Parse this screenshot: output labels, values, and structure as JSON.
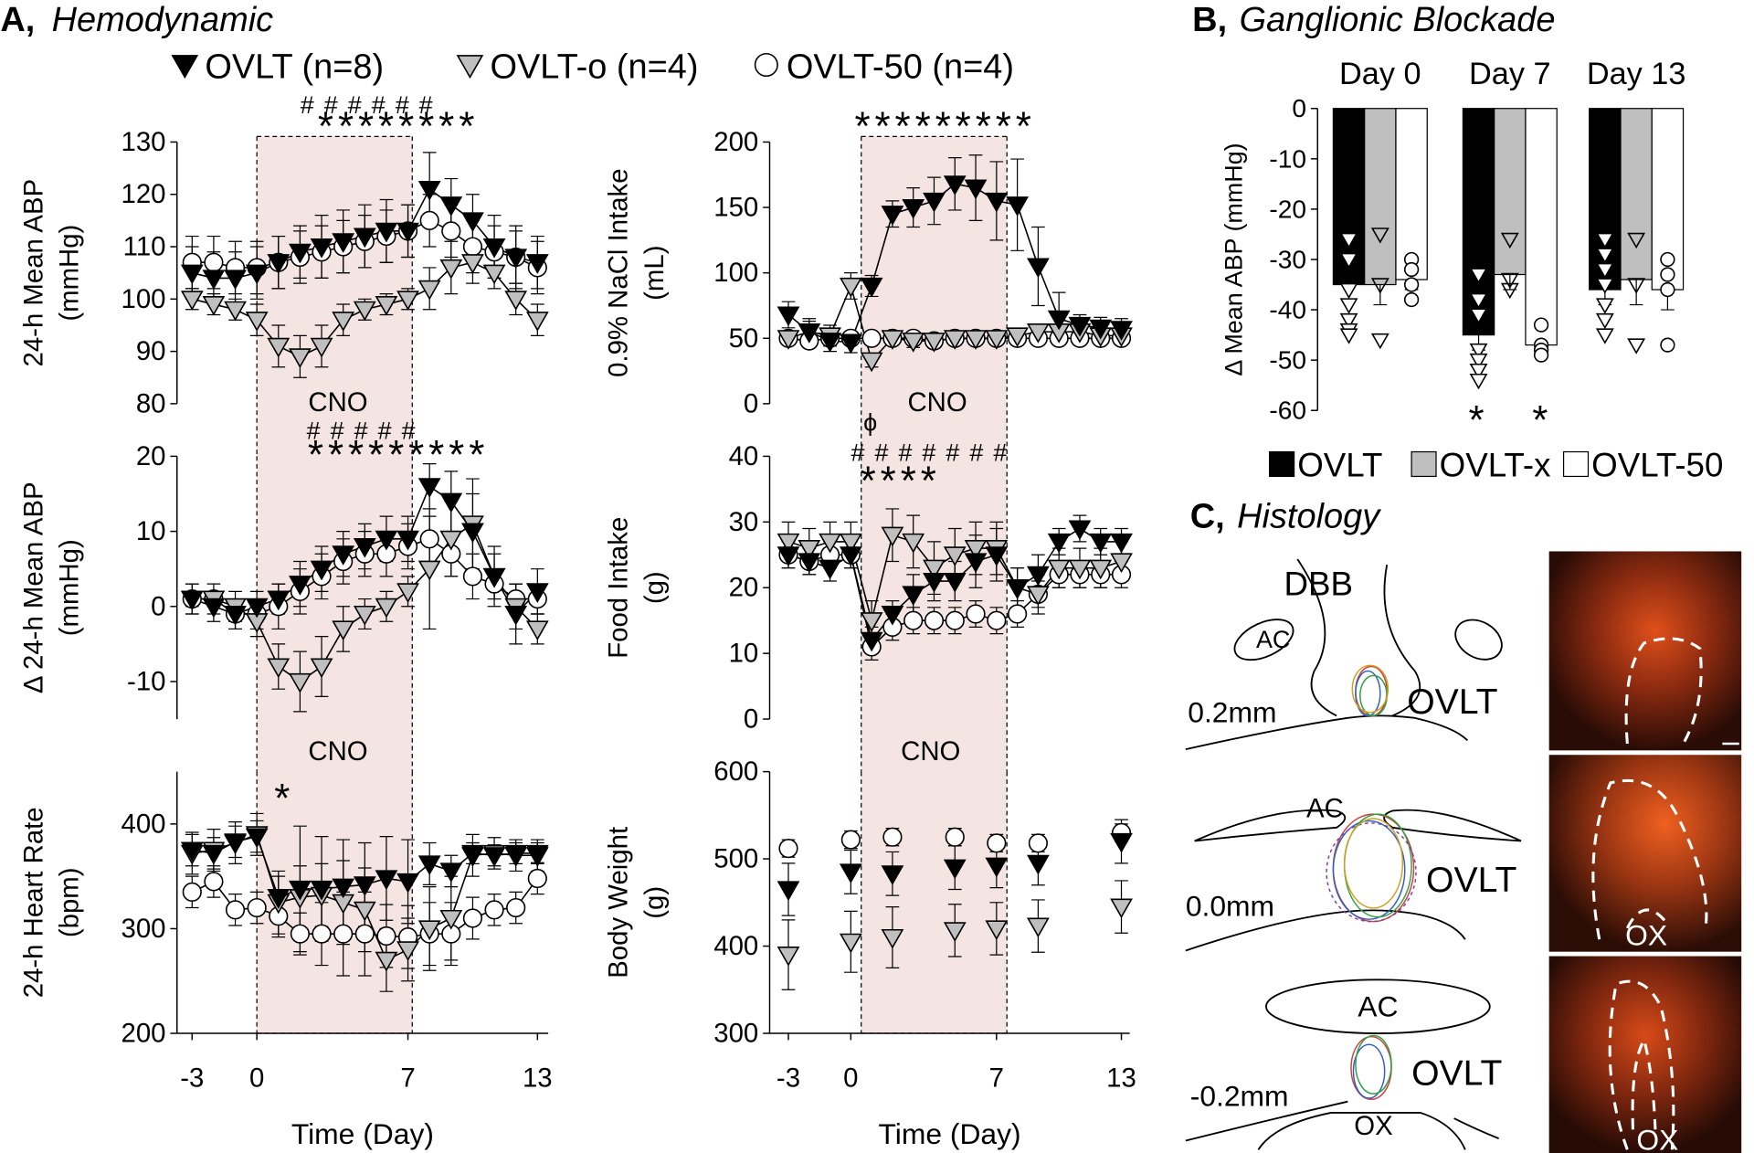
{
  "panel_a": {
    "letter": "A,",
    "title": "Hemodynamic"
  },
  "panel_b": {
    "letter": "B,",
    "title": "Ganglionic Blockade"
  },
  "chart_data": [
    {
      "type": "line",
      "y_label": [
        "24-h Mean ABP",
        "(mmHg)"
      ],
      "xlim": [
        -3.7,
        13.5
      ],
      "ylim": [
        80,
        130
      ],
      "yticks": [
        80,
        90,
        100,
        110,
        120,
        130
      ],
      "x": [
        -3,
        -2,
        -1,
        0,
        1,
        2,
        3,
        4,
        5,
        6,
        7,
        8,
        9,
        10,
        11,
        12,
        13
      ],
      "lines": true,
      "shade": [
        0,
        7.2
      ],
      "shade_label": "CNO",
      "annotations": [
        "######",
        "********"
      ],
      "series": [
        {
          "name": "OVLT (n=8)",
          "color": "#000000",
          "marker": "triangle-down",
          "values": [
            105,
            104,
            104,
            105,
            107,
            109,
            110,
            111,
            112,
            113,
            113,
            121,
            118,
            115,
            110,
            108,
            107
          ],
          "errors": [
            5,
            5,
            5,
            5,
            5,
            5,
            6,
            6,
            6,
            6,
            5,
            7,
            5,
            5,
            6,
            6,
            5
          ]
        },
        {
          "name": "OVLT-o (n=4)",
          "color": "#bfbfbf",
          "marker": "triangle-down",
          "values": [
            100,
            99,
            98,
            96,
            91,
            89,
            91,
            96,
            98,
            99,
            100,
            102,
            106,
            107,
            105,
            100,
            96
          ],
          "errors": [
            2,
            2,
            2,
            3,
            4,
            4,
            4,
            3,
            2,
            2,
            2,
            4,
            5,
            4,
            3,
            3,
            3
          ]
        },
        {
          "name": "OVLT-50 (n=4)",
          "color": "#ffffff",
          "marker": "circle",
          "values": [
            107,
            107,
            106,
            106,
            107,
            108,
            109,
            110,
            111,
            112,
            113,
            115,
            113,
            110,
            109,
            108,
            106
          ],
          "errors": [
            5,
            5,
            5,
            5,
            5,
            5,
            5,
            5,
            5,
            5,
            5,
            5,
            5,
            5,
            5,
            5,
            5
          ]
        }
      ]
    },
    {
      "type": "line",
      "y_label": [
        "0.9% NaCl Intake",
        "(mL)"
      ],
      "xlim": [
        -3.9,
        13.4
      ],
      "ylim": [
        0,
        200
      ],
      "yticks": [
        0,
        50,
        100,
        150,
        200
      ],
      "x": [
        -3,
        -2,
        -1,
        0,
        1,
        2,
        3,
        4,
        5,
        6,
        7,
        8,
        9,
        10,
        11,
        12,
        13
      ],
      "lines": true,
      "shade": [
        0.5,
        7.5
      ],
      "shade_label": "CNO",
      "annotations": [
        "*********"
      ],
      "series": [
        {
          "color": "#000000",
          "marker": "triangle-down",
          "values": [
            68,
            55,
            48,
            47,
            90,
            145,
            150,
            155,
            168,
            165,
            155,
            152,
            105,
            65,
            60,
            58,
            57
          ],
          "errors": [
            10,
            10,
            8,
            8,
            8,
            10,
            15,
            18,
            20,
            25,
            30,
            35,
            30,
            20,
            8,
            8,
            8
          ]
        },
        {
          "color": "#bfbfbf",
          "marker": "triangle-down",
          "values": [
            50,
            55,
            52,
            90,
            33,
            50,
            48,
            48,
            50,
            50,
            50,
            52,
            55,
            55,
            55,
            52,
            52
          ],
          "errors": [
            5,
            8,
            8,
            10,
            5,
            5,
            5,
            5,
            5,
            5,
            5,
            5,
            5,
            5,
            5,
            5,
            5
          ]
        },
        {
          "color": "#ffffff",
          "marker": "circle",
          "values": [
            50,
            48,
            50,
            50,
            50,
            50,
            50,
            48,
            50,
            50,
            50,
            50,
            50,
            50,
            50,
            50,
            50
          ],
          "errors": [
            5,
            5,
            5,
            5,
            5,
            5,
            5,
            5,
            5,
            5,
            5,
            5,
            5,
            5,
            5,
            5,
            5
          ]
        }
      ]
    },
    {
      "type": "line",
      "y_label": [
        "Δ 24-h Mean ABP",
        "(mmHg)"
      ],
      "xlim": [
        -3.7,
        13.5
      ],
      "ylim": [
        -15,
        20
      ],
      "yticks": [
        -10,
        0,
        10,
        20
      ],
      "x": [
        -3,
        -2,
        -1,
        0,
        1,
        2,
        3,
        4,
        5,
        6,
        7,
        8,
        9,
        10,
        11,
        12,
        13
      ],
      "lines": true,
      "shade": [
        0,
        7.2
      ],
      "shade_label": "CNO",
      "annotations": [
        "#####",
        "*********"
      ],
      "series": [
        {
          "color": "#000000",
          "marker": "triangle-down",
          "values": [
            1,
            0,
            -1,
            0,
            1,
            3,
            5,
            7,
            8,
            9,
            9,
            16,
            14,
            10,
            4,
            -1,
            2
          ],
          "errors": [
            2,
            2,
            2,
            2,
            2,
            3,
            3,
            3,
            3,
            3,
            3,
            3,
            4,
            5,
            4,
            4,
            3
          ]
        },
        {
          "color": "#bfbfbf",
          "marker": "triangle-down",
          "values": [
            1,
            1,
            0,
            -2,
            -8,
            -10,
            -8,
            -3,
            -1,
            0,
            2,
            5,
            9,
            11,
            4,
            0,
            -3
          ],
          "errors": [
            1,
            1,
            2,
            2,
            3,
            4,
            4,
            3,
            2,
            2,
            2,
            8,
            5,
            6,
            3,
            3,
            2
          ]
        },
        {
          "color": "#ffffff",
          "marker": "circle",
          "values": [
            1,
            1,
            -1,
            -1,
            0,
            2,
            4,
            6,
            7,
            7,
            8,
            9,
            7,
            4,
            3,
            1,
            1
          ],
          "errors": [
            2,
            2,
            2,
            2,
            3,
            3,
            3,
            3,
            3,
            3,
            3,
            3,
            3,
            3,
            2,
            2,
            2
          ]
        }
      ]
    },
    {
      "type": "line",
      "y_label": [
        "Food Intake",
        "(g)"
      ],
      "xlim": [
        -3.9,
        13.4
      ],
      "ylim": [
        0,
        40
      ],
      "yticks": [
        0,
        10,
        20,
        30,
        40
      ],
      "x": [
        -3,
        -2,
        -1,
        0,
        1,
        2,
        3,
        4,
        5,
        6,
        7,
        8,
        9,
        10,
        11,
        12,
        13
      ],
      "lines": true,
      "shade": [
        0.5,
        7.5
      ],
      "shade_label": "CNO",
      "annotations": [
        "ϕ",
        "#######",
        "****"
      ],
      "series": [
        {
          "color": "#000000",
          "marker": "triangle-down",
          "values": [
            25,
            24,
            23,
            25,
            12,
            16,
            19,
            21,
            21,
            24,
            25,
            20,
            22,
            27,
            29,
            27,
            27
          ],
          "errors": [
            2,
            2,
            2,
            2,
            2,
            2,
            3,
            3,
            3,
            4,
            4,
            3,
            3,
            2,
            2,
            2,
            2
          ]
        },
        {
          "color": "#bfbfbf",
          "marker": "triangle-down",
          "values": [
            27,
            26,
            27,
            27,
            15,
            28,
            27,
            23,
            25,
            26,
            26,
            20,
            19,
            23,
            23,
            23,
            24
          ],
          "errors": [
            3,
            3,
            3,
            3,
            3,
            4,
            4,
            4,
            4,
            4,
            4,
            3,
            3,
            3,
            3,
            3,
            3
          ]
        },
        {
          "color": "#ffffff",
          "marker": "circle",
          "values": [
            25,
            24,
            25,
            25,
            11,
            14,
            15,
            15,
            15,
            16,
            15,
            16,
            19,
            22,
            22,
            22,
            22
          ],
          "errors": [
            2,
            2,
            2,
            2,
            2,
            2,
            2,
            2,
            2,
            2,
            2,
            2,
            2,
            2,
            2,
            2,
            2
          ]
        }
      ]
    },
    {
      "type": "line",
      "y_label": [
        "24-h Heart Rate",
        "(bpm)"
      ],
      "xlim": [
        -3.7,
        13.5
      ],
      "ylim": [
        200,
        450
      ],
      "yticks": [
        200,
        300,
        400
      ],
      "x": [
        -3,
        -2,
        -1,
        0,
        1,
        2,
        3,
        4,
        5,
        6,
        7,
        8,
        9,
        10,
        11,
        12,
        13
      ],
      "lines": true,
      "shade": [
        0,
        7.2
      ],
      "annotations": [
        "*"
      ],
      "xticks": [
        -3,
        0,
        7,
        13
      ],
      "x_label": "Time (Day)",
      "series": [
        {
          "color": "#000000",
          "marker": "triangle-down",
          "values": [
            375,
            372,
            383,
            388,
            330,
            338,
            338,
            340,
            342,
            348,
            345,
            362,
            355,
            372,
            370,
            372,
            372
          ],
          "errors": [
            15,
            15,
            15,
            15,
            20,
            60,
            50,
            45,
            40,
            40,
            40,
            20,
            15,
            10,
            10,
            10,
            10
          ]
        },
        {
          "color": "#bfbfbf",
          "marker": "triangle-down",
          "values": [
            372,
            375,
            382,
            390,
            325,
            330,
            332,
            325,
            318,
            270,
            280,
            300,
            310,
            370,
            372,
            370,
            370
          ],
          "errors": [
            20,
            20,
            20,
            20,
            30,
            30,
            30,
            40,
            40,
            30,
            30,
            40,
            40,
            20,
            15,
            15,
            15
          ]
        },
        {
          "color": "#ffffff",
          "marker": "circle",
          "values": [
            335,
            345,
            318,
            320,
            312,
            295,
            295,
            295,
            295,
            293,
            292,
            295,
            295,
            310,
            318,
            320,
            348
          ],
          "errors": [
            15,
            15,
            15,
            15,
            20,
            20,
            30,
            40,
            40,
            30,
            30,
            30,
            30,
            20,
            15,
            15,
            15
          ]
        }
      ]
    },
    {
      "type": "line",
      "y_label": [
        "Body Weight",
        "(g)"
      ],
      "xlim": [
        -3.9,
        13.4
      ],
      "ylim": [
        300,
        600
      ],
      "yticks": [
        300,
        400,
        500,
        600
      ],
      "x": [
        -3,
        0,
        2,
        5,
        7,
        9,
        13
      ],
      "lines": false,
      "shade": [
        0.5,
        7.5
      ],
      "xticks": [
        -3,
        0,
        7,
        13
      ],
      "x_label": "Time (Day)",
      "series": [
        {
          "color": "#000000",
          "marker": "triangle-down",
          "values": [
            465,
            485,
            483,
            490,
            492,
            495,
            520
          ],
          "errors": [
            30,
            25,
            25,
            25,
            25,
            25,
            25
          ]
        },
        {
          "color": "#bfbfbf",
          "marker": "triangle-down",
          "values": [
            390,
            405,
            410,
            418,
            420,
            423,
            445
          ],
          "errors": [
            40,
            35,
            35,
            30,
            30,
            30,
            30
          ]
        },
        {
          "color": "#ffffff",
          "marker": "circle",
          "values": [
            512,
            522,
            525,
            525,
            518,
            518,
            530
          ],
          "errors": [
            10,
            10,
            10,
            10,
            10,
            10,
            10
          ]
        }
      ]
    },
    {
      "type": "bar",
      "y_label": "Δ Mean ABP (mmHg)",
      "categories": [
        "Day 0",
        "Day 7",
        "Day 13"
      ],
      "ylim": [
        -60,
        0
      ],
      "yticks": [
        -60,
        -50,
        -40,
        -30,
        -20,
        -10,
        0
      ],
      "annotations": [
        "*",
        "*"
      ],
      "series": [
        {
          "name": "OVLT",
          "color": "#000000",
          "marker": "triangle-down",
          "values": [
            -35,
            -45,
            -36
          ],
          "errors": [
            3,
            3,
            3
          ],
          "points": [
            [
              -26,
              -30,
              -36,
              -39,
              -42,
              -44,
              -45
            ],
            [
              -33,
              -38,
              -41,
              -48,
              -50,
              -52,
              -54
            ],
            [
              -26,
              -29,
              -32,
              -35,
              -39,
              -42,
              -45
            ]
          ]
        },
        {
          "name": "OVLT-x",
          "color": "#bfbfbf",
          "marker": "triangle-down",
          "values": [
            -35,
            -33,
            -34
          ],
          "errors": [
            4,
            3,
            5
          ],
          "points": [
            [
              -25,
              -35,
              -46
            ],
            [
              -26,
              -34,
              -36
            ],
            [
              -26,
              -35,
              -47
            ]
          ]
        },
        {
          "name": "OVLT-50",
          "color": "#ffffff",
          "marker": "circle",
          "values": [
            -34,
            -47,
            -36
          ],
          "errors": [
            2,
            2,
            4
          ],
          "points": [
            [
              -30,
              -32,
              -35,
              -38
            ],
            [
              -43,
              -47,
              -48,
              -49
            ],
            [
              -30,
              -33,
              -36,
              -47
            ]
          ]
        }
      ]
    }
  ],
  "histology": {
    "letter": "C,",
    "title": "Histology",
    "sections": [
      {
        "offset": "0.2mm",
        "labels": [
          "DBB",
          "AC",
          "OVLT"
        ]
      },
      {
        "offset": "0.0mm",
        "labels": [
          "AC",
          "OVLT"
        ]
      },
      {
        "offset": "-0.2mm",
        "labels": [
          "AC",
          "OVLT",
          "OX"
        ]
      }
    ],
    "image_labels": [
      "OX",
      "OX"
    ]
  }
}
